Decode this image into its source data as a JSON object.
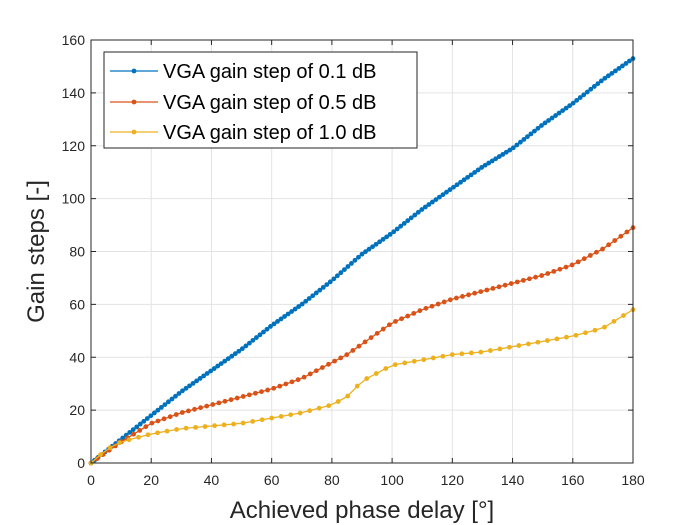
{
  "chart_data": {
    "type": "line",
    "title": "",
    "xlabel": "Achieved phase delay [°]",
    "ylabel": "Gain steps [-]",
    "xlim": [
      0,
      180
    ],
    "ylim": [
      0,
      160
    ],
    "xticks": [
      0,
      20,
      40,
      60,
      80,
      100,
      120,
      140,
      160,
      180
    ],
    "yticks": [
      0,
      20,
      40,
      60,
      80,
      100,
      120,
      140,
      160
    ],
    "grid": true,
    "legend_position": "top-left",
    "series": [
      {
        "name": "VGA gain step of 0.1 dB",
        "color": "#0072BD",
        "points": 155,
        "x": [
          0,
          10,
          20,
          30,
          40,
          50,
          60,
          70,
          80,
          90,
          100,
          110,
          120,
          130,
          140,
          150,
          160,
          170,
          180
        ],
        "y": [
          0,
          9,
          18,
          27,
          35,
          43,
          52,
          60,
          69,
          79,
          87,
          96,
          104,
          112,
          119,
          128,
          136,
          145,
          153
        ]
      },
      {
        "name": "VGA gain step of 0.5 dB",
        "color": "#D95319",
        "points": 90,
        "x": [
          0,
          10,
          20,
          30,
          40,
          50,
          60,
          70,
          80,
          85,
          90,
          95,
          100,
          110,
          120,
          130,
          140,
          150,
          160,
          170,
          180
        ],
        "y": [
          0,
          8,
          15,
          19,
          22,
          25,
          28,
          32,
          38,
          41,
          45,
          49,
          53,
          58,
          62,
          65,
          68,
          71,
          75,
          81,
          89
        ]
      },
      {
        "name": "VGA gain step of 1.0 dB",
        "color": "#EDB120",
        "points": 58,
        "x": [
          0,
          5,
          10,
          20,
          30,
          40,
          50,
          60,
          70,
          80,
          85,
          90,
          95,
          100,
          110,
          120,
          130,
          140,
          150,
          160,
          170,
          180
        ],
        "y": [
          0,
          5,
          8,
          11,
          13,
          14,
          15,
          17,
          19,
          22,
          25,
          31,
          34,
          37,
          39,
          41,
          42,
          44,
          46,
          48,
          51,
          58
        ]
      }
    ]
  }
}
